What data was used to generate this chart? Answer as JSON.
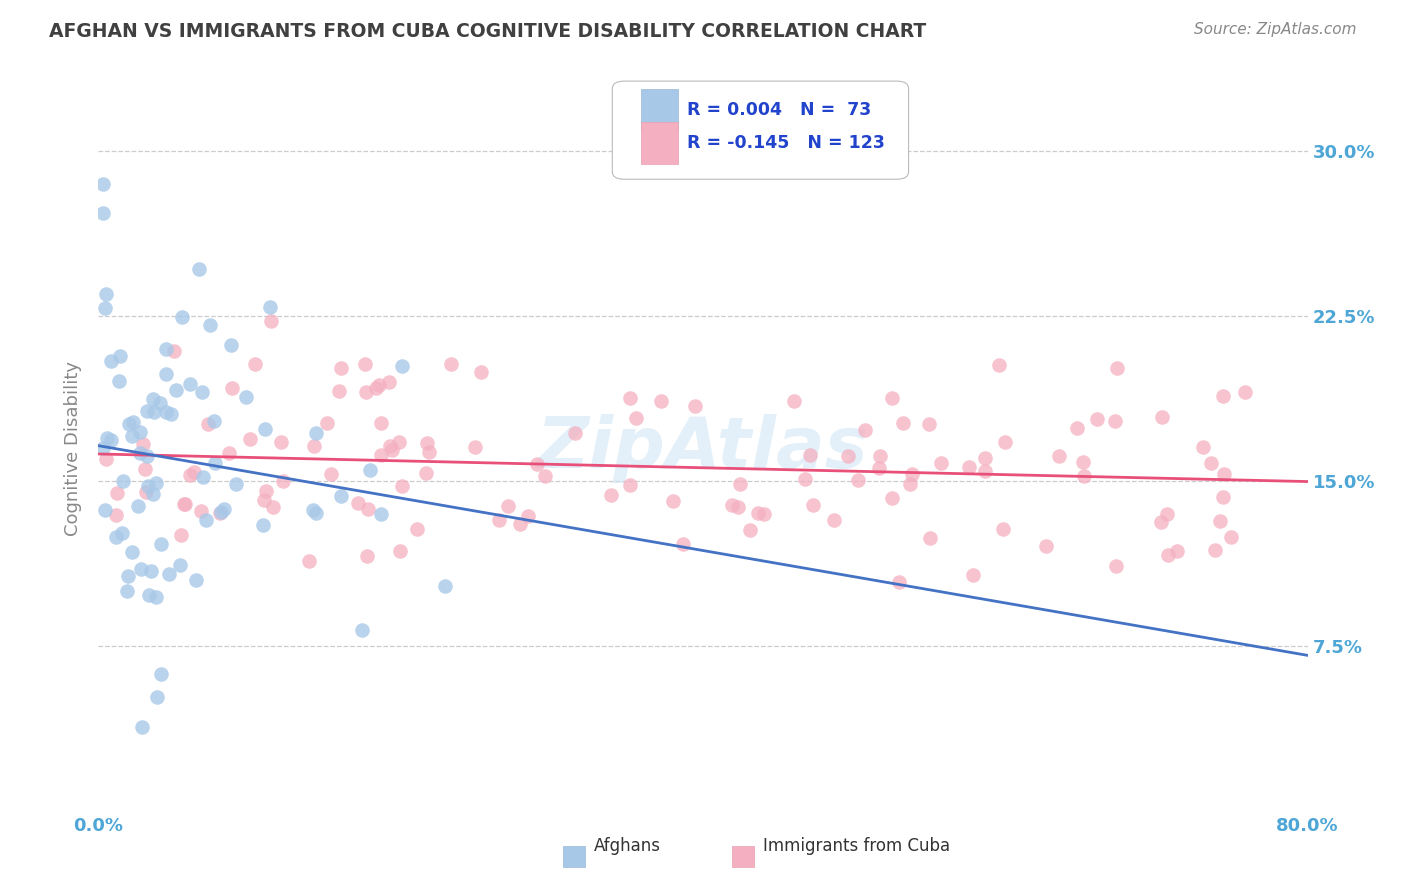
{
  "title": "AFGHAN VS IMMIGRANTS FROM CUBA COGNITIVE DISABILITY CORRELATION CHART",
  "source": "Source: ZipAtlas.com",
  "ylabel": "Cognitive Disability",
  "xlim": [
    0.0,
    80.0
  ],
  "ylim": [
    0.0,
    33.0
  ],
  "yticks": [
    7.5,
    15.0,
    22.5,
    30.0
  ],
  "ytick_labels": [
    "7.5%",
    "15.0%",
    "22.5%",
    "30.0%"
  ],
  "afghan_color": "#a8c8e8",
  "cuba_color": "#f4afc0",
  "afghan_line_color": "#4472c4",
  "cuba_line_color": "#e8507a",
  "background_color": "#ffffff",
  "grid_color": "#cccccc",
  "watermark": "ZipAtlas",
  "title_color": "#404040",
  "legend_text_color": "#2244cc",
  "legend_r_color": "#2244cc",
  "legend_n_color": "#111111",
  "legend_box_color_1": "#a8c8e8",
  "legend_box_color_2": "#f4afc0",
  "legend_r1": "R = 0.004",
  "legend_n1": "N =  73",
  "legend_r2": "R = -0.145",
  "legend_n2": "N = 123",
  "afghan_n": 73,
  "cuba_n": 123,
  "afghan_r": 0.004,
  "cuba_r": -0.145,
  "ytick_color": "#4da6d6",
  "xtick_color": "#4da6d6"
}
